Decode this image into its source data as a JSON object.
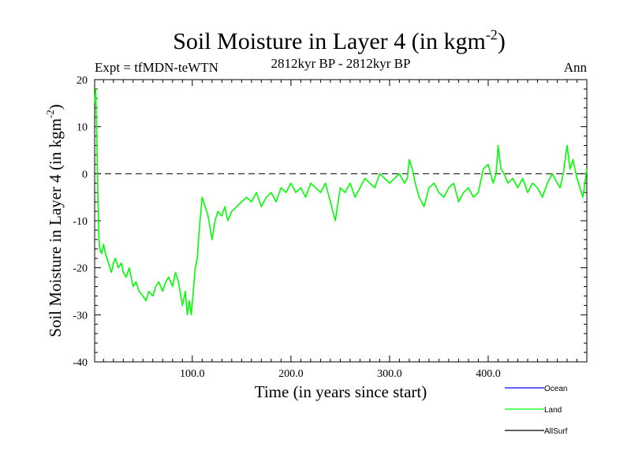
{
  "chart_data": {
    "type": "line",
    "title": "Soil Moisture in Layer 4 (in kgm",
    "title_sup": "-2",
    "title_tail": ")",
    "subtitle_left": "Expt = tfMDN-teWTN",
    "subtitle_center": "2812kyr BP - 2812kyr BP",
    "subtitle_right": "Ann",
    "xlabel": "Time (in years since start)",
    "ylabel": "Soil Moisture in Layer 4 (in kgm",
    "ylabel_sup": "-2",
    "ylabel_tail": ")",
    "xlim": [
      1,
      500
    ],
    "ylim": [
      -40,
      20
    ],
    "x_ticks": [
      100,
      200,
      300,
      400
    ],
    "x_tick_labels": [
      "100.0",
      "200.0",
      "300.0",
      "400.0"
    ],
    "y_ticks": [
      -40,
      -30,
      -20,
      -10,
      0,
      10,
      20
    ],
    "y_tick_labels": [
      "-40",
      "-30",
      "-20",
      "-10",
      "0",
      "10",
      "20"
    ],
    "reference_line": {
      "y": 0,
      "style": "dashed"
    },
    "series": [
      {
        "name": "Land",
        "color": "#00ff00",
        "x": [
          1,
          2,
          3,
          4,
          5,
          6,
          8,
          10,
          12,
          15,
          18,
          20,
          22,
          25,
          28,
          30,
          33,
          36,
          40,
          43,
          46,
          50,
          53,
          56,
          60,
          63,
          66,
          70,
          73,
          76,
          80,
          83,
          86,
          90,
          93,
          95,
          97,
          99,
          101,
          103,
          105,
          107,
          110,
          113,
          116,
          120,
          123,
          126,
          130,
          133,
          136,
          140,
          145,
          150,
          155,
          160,
          165,
          170,
          175,
          180,
          185,
          190,
          195,
          200,
          205,
          210,
          215,
          220,
          225,
          230,
          235,
          240,
          245,
          250,
          255,
          260,
          265,
          270,
          275,
          280,
          285,
          290,
          295,
          300,
          305,
          310,
          315,
          318,
          320,
          323,
          326,
          330,
          335,
          340,
          345,
          350,
          355,
          360,
          365,
          370,
          375,
          380,
          385,
          390,
          395,
          400,
          405,
          408,
          410,
          413,
          416,
          420,
          425,
          430,
          435,
          440,
          445,
          450,
          455,
          460,
          465,
          470,
          473,
          476,
          480,
          483,
          486,
          490,
          493,
          496,
          500
        ],
        "values": [
          15,
          18,
          10,
          -2,
          -12,
          -16,
          -17,
          -15,
          -17,
          -19,
          -21,
          -19,
          -18,
          -20,
          -19,
          -21,
          -22,
          -20,
          -24,
          -23,
          -25,
          -26,
          -27,
          -25,
          -26,
          -24,
          -23,
          -25,
          -23,
          -22,
          -24,
          -21,
          -23,
          -28,
          -25,
          -30,
          -27,
          -30,
          -25,
          -20,
          -18,
          -12,
          -5,
          -7,
          -9,
          -14,
          -10,
          -8,
          -9,
          -7,
          -10,
          -8,
          -7,
          -6,
          -5,
          -6,
          -4,
          -7,
          -5,
          -4,
          -6,
          -3,
          -4,
          -2,
          -4,
          -3,
          -5,
          -2,
          -3,
          -4,
          -2,
          -6,
          -10,
          -3,
          -4,
          -2,
          -5,
          -3,
          -1,
          -2,
          -3,
          0,
          -1,
          -2,
          -1,
          0,
          -2,
          -1,
          3,
          1,
          -2,
          -5,
          -7,
          -3,
          -2,
          -4,
          -5,
          -3,
          -2,
          -6,
          -4,
          -3,
          -5,
          -4,
          1,
          2,
          -2,
          0,
          6,
          1,
          0,
          -2,
          -1,
          -3,
          -1,
          -4,
          -2,
          -3,
          -5,
          -2,
          0,
          -2,
          -3,
          0,
          6,
          1,
          3,
          -1,
          -3,
          -5,
          1
        ]
      }
    ],
    "legend": [
      {
        "name": "Ocean",
        "color": "#0000ff"
      },
      {
        "name": "Land",
        "color": "#00ff00"
      },
      {
        "name": "AllSurf",
        "color": "#000000"
      }
    ]
  }
}
